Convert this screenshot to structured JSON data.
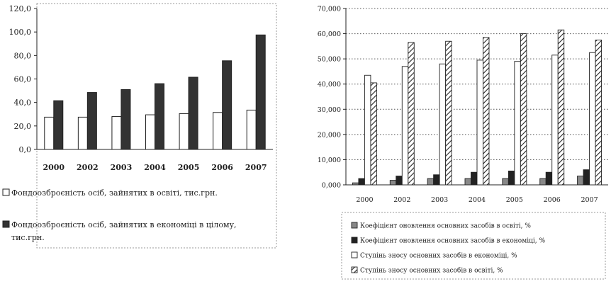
{
  "chart_data": [
    {
      "type": "bar",
      "categories": [
        "2000",
        "2002",
        "2003",
        "2004",
        "2005",
        "2006",
        "2007"
      ],
      "series": [
        {
          "name": "Фондоозброєність осіб, зайнятих в освіті, тис.грн.",
          "color": "#ffffff",
          "pattern": "open",
          "values": [
            27.5,
            27.5,
            28.0,
            29.5,
            30.5,
            31.5,
            33.5
          ]
        },
        {
          "name": "Фондоозброєність осіб, зайнятих в економіці в цілому, тис.грн.",
          "color": "#333333",
          "pattern": "solid",
          "values": [
            41.5,
            48.5,
            51.0,
            56.0,
            61.5,
            75.5,
            97.5
          ]
        }
      ],
      "ylim": [
        0,
        120
      ],
      "yticks": [
        "0,0",
        "20,0",
        "40,0",
        "60,0",
        "80,0",
        "100,0",
        "120,0"
      ],
      "grid": false,
      "legend_position": "bottom"
    },
    {
      "type": "bar",
      "categories": [
        "2000",
        "2002",
        "2003",
        "2004",
        "2005",
        "2006",
        "2007"
      ],
      "series": [
        {
          "name": "Коефіцієнт оновлення основних засобів в освіті, %",
          "color": "#888888",
          "pattern": "grey",
          "values": [
            0.8,
            1.8,
            2.5,
            2.5,
            2.5,
            2.5,
            3.5
          ]
        },
        {
          "name": "Коефіцієнт оновлення основних засобів в економіці, %",
          "color": "#222222",
          "pattern": "solid",
          "values": [
            2.5,
            3.5,
            4.0,
            5.0,
            5.5,
            5.0,
            6.0
          ]
        },
        {
          "name": "Ступінь зносу основних засобів в економіці, %",
          "color": "#ffffff",
          "pattern": "open",
          "values": [
            43.5,
            47.0,
            48.0,
            49.5,
            49.0,
            51.5,
            52.5
          ]
        },
        {
          "name": "Ступінь зносу основних засобів в освіті, %",
          "color": "#ffffff",
          "pattern": "hatched",
          "values": [
            40.5,
            56.5,
            57.0,
            58.5,
            60.0,
            61.5,
            57.5
          ]
        }
      ],
      "ylim": [
        0,
        70
      ],
      "yticks": [
        "0,000",
        "10,000",
        "20,000",
        "30,000",
        "40,000",
        "50,000",
        "60,000",
        "70,000"
      ],
      "grid": "horizontal-dotted",
      "legend_position": "bottom"
    }
  ]
}
